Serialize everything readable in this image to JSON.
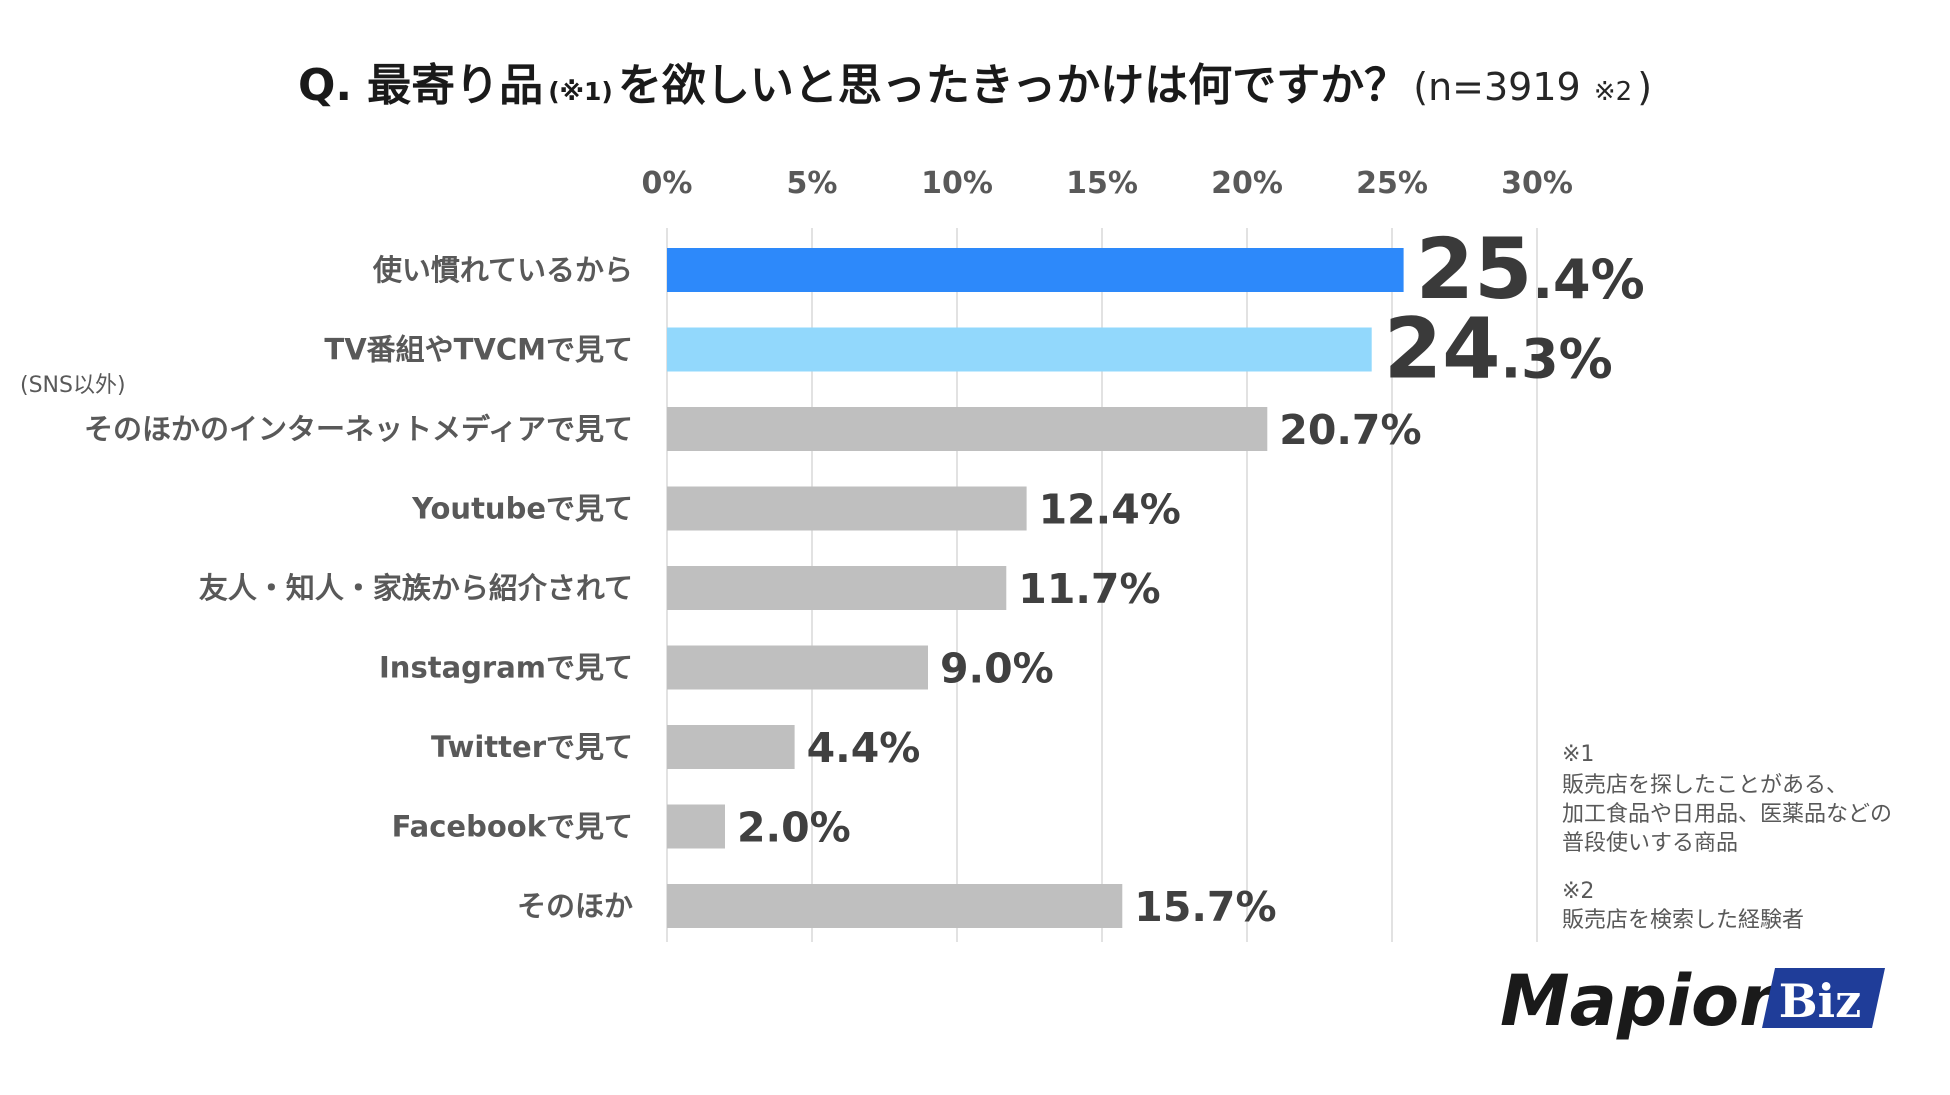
{
  "title": {
    "q": "Q.",
    "text_a": "最寄り品",
    "ref1": "(※1)",
    "text_b": "を欲しいと思ったきっかけは何ですか？",
    "n": "(n=3919",
    "ref2": "※2",
    "close": ")"
  },
  "colors": {
    "highlight1": "#2d89fa",
    "highlight2": "#92d8fc",
    "default_bar": "#bfbfbf",
    "grid": "#d9d9d9",
    "logo_blue": "#1f3d99"
  },
  "chart_data": {
    "type": "bar",
    "orientation": "horizontal",
    "xlim": [
      0,
      30
    ],
    "ticks": [
      "0%",
      "5%",
      "10%",
      "15%",
      "20%",
      "25%",
      "30%"
    ],
    "tick_values": [
      0,
      5,
      10,
      15,
      20,
      25,
      30
    ],
    "categories": [
      "使い慣れているから",
      "TV番組やTVCMで見て",
      "そのほかのインターネットメディアで見て",
      "Youtubeで見て",
      "友人・知人・家族から紹介されて",
      "Instagramで見て",
      "Twitterで見て",
      "Facebookで見て",
      "そのほか"
    ],
    "category_note": "(SNS以外)",
    "values": [
      25.4,
      24.3,
      20.7,
      12.4,
      11.7,
      9.0,
      4.4,
      2.0,
      15.7
    ],
    "labels": [
      "25.4%",
      "24.3%",
      "20.7%",
      "12.4%",
      "11.7%",
      "9.0%",
      "4.4%",
      "2.0%",
      "15.7%"
    ],
    "highlight": [
      1,
      2,
      0,
      0,
      0,
      0,
      0,
      0,
      0
    ]
  },
  "notes": {
    "ref1_mark": "※1",
    "ref1_lines": [
      "販売店を探したことがある、",
      "加工食品や日用品、医薬品などの",
      "普段使いする商品"
    ],
    "ref2_mark": "※2",
    "ref2_lines": [
      "販売店を検索した経験者"
    ]
  },
  "logo": {
    "main": "Mapion",
    "badge": "Biz"
  }
}
